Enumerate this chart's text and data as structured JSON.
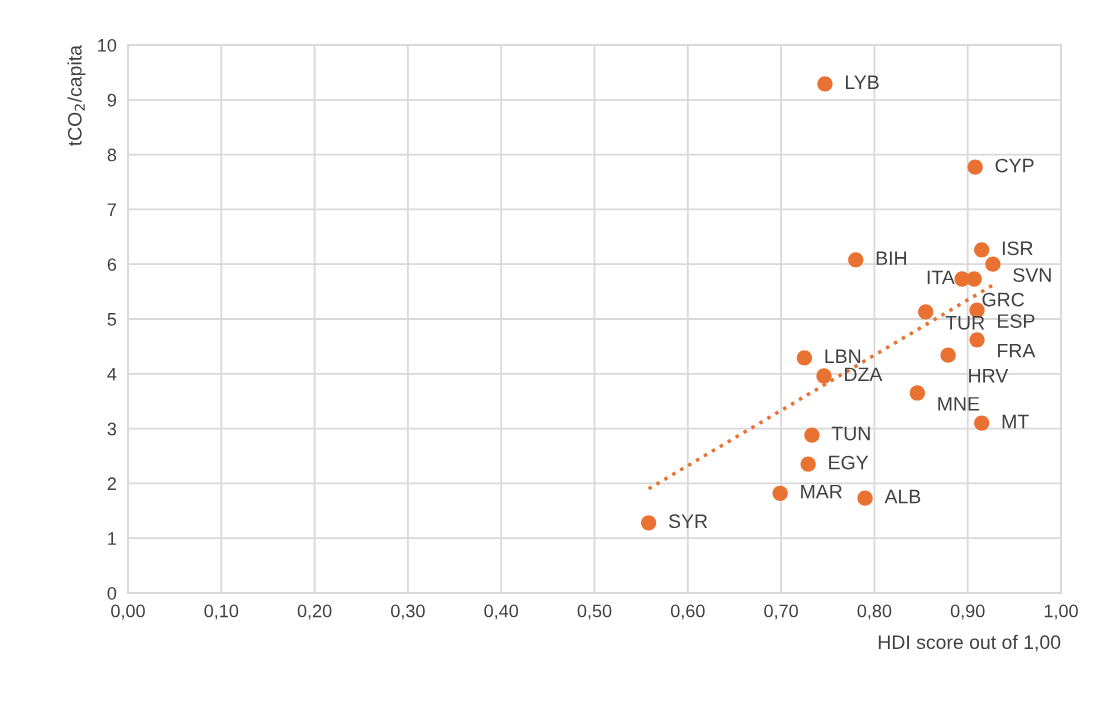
{
  "chart_data": {
    "type": "scatter",
    "ylabel": "tCO$_{2}$/capita",
    "xlabel": "HDI score out of 1,00",
    "xlim": [
      0,
      1
    ],
    "ylim": [
      0,
      10
    ],
    "xticks": [
      {
        "value": 0,
        "label": "0,00"
      },
      {
        "value": 0.1,
        "label": "0,10"
      },
      {
        "value": 0.2,
        "label": "0,20"
      },
      {
        "value": 0.3,
        "label": "0,30"
      },
      {
        "value": 0.4,
        "label": "0,40"
      },
      {
        "value": 0.5,
        "label": "0,50"
      },
      {
        "value": 0.6,
        "label": "0,60"
      },
      {
        "value": 0.7,
        "label": "0,70"
      },
      {
        "value": 0.8,
        "label": "0,80"
      },
      {
        "value": 0.9,
        "label": "0,90"
      },
      {
        "value": 1,
        "label": "1,00"
      }
    ],
    "yticks": [
      0,
      1,
      2,
      3,
      4,
      5,
      6,
      7,
      8,
      9,
      10
    ],
    "grid": true,
    "marker": "circle",
    "series": [
      {
        "color": "#e97132",
        "x": [
          0.747,
          0.908,
          0.915,
          0.927,
          0.894,
          0.907,
          0.78,
          0.855,
          0.91,
          0.91,
          0.879,
          0.846,
          0.915,
          0.725,
          0.746,
          0.733,
          0.729,
          0.699,
          0.79,
          0.558
        ],
        "values": [
          9.29,
          7.77,
          6.26,
          6.0,
          5.73,
          5.73,
          6.08,
          5.13,
          5.16,
          4.62,
          4.34,
          3.65,
          3.1,
          4.29,
          3.96,
          2.88,
          2.35,
          1.82,
          1.73,
          1.28
        ],
        "value_labels": [
          "LYB",
          "CYP",
          "ISR",
          "SVN",
          "GRC",
          "ITA",
          "BIH",
          "TUR",
          "ESP",
          "FRA",
          "HRV",
          "MNE",
          "MT",
          "LBN",
          "DZA",
          "TUN",
          "EGY",
          "MAR",
          "ALB",
          "SYR"
        ]
      },
      {
        "type": "line",
        "color": "#e97132",
        "line_style": "dotted",
        "marker": "none",
        "x": [
          0.558,
          0.927
        ],
        "values": [
          1.9,
          5.62
        ]
      }
    ]
  }
}
